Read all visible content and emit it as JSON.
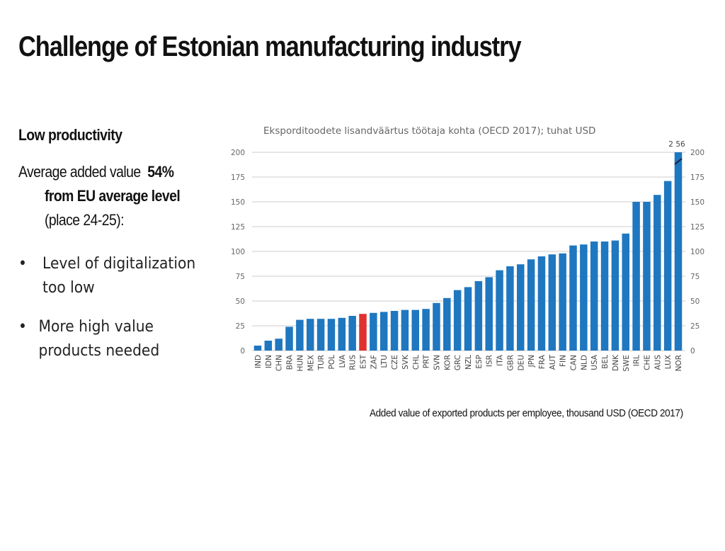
{
  "slide": {
    "title": "Challenge of Estonian manufacturing industry",
    "subheading": "Low productivity",
    "avg_prefix": "Average added value",
    "avg_percent": "54%",
    "avg_line2": "from EU average level",
    "avg_line3": "(place 24-25):",
    "bullet_symbol": "•",
    "bullets": [
      "Level of digitalization too low",
      "More high value products needed"
    ],
    "caption": "Added value of exported products per employee, thousand USD (OECD 2017)"
  },
  "colors": {
    "bar": "#1f77c0",
    "highlight": "#e03030",
    "grid": "#d8d8d8",
    "axis_text": "#666666"
  },
  "chart_data": {
    "type": "bar",
    "title": "Eksporditoodete lisandväärtus töötaja kohta (OECD 2017); tuhat USD",
    "xlabel": "",
    "ylabel": "",
    "ylim": [
      0,
      200
    ],
    "yticks": [
      0,
      25,
      50,
      75,
      100,
      125,
      150,
      175,
      200
    ],
    "categories": [
      "IND",
      "IDN",
      "CHN",
      "BRA",
      "HUN",
      "MEX",
      "TUR",
      "POL",
      "LVA",
      "RUS",
      "EST",
      "ZAF",
      "LTU",
      "CZE",
      "SVK",
      "CHL",
      "PRT",
      "SVN",
      "KOR",
      "GRC",
      "NZL",
      "ESP",
      "ISR",
      "ITA",
      "GBR",
      "DEU",
      "JPN",
      "FRA",
      "AUT",
      "FIN",
      "CAN",
      "NLD",
      "USA",
      "BEL",
      "DNK",
      "SWE",
      "IRL",
      "CHE",
      "AUS",
      "LUX",
      "NOR"
    ],
    "values": [
      5,
      10,
      12,
      24,
      31,
      32,
      32,
      32,
      33,
      35,
      37,
      38,
      39,
      40,
      41,
      41,
      42,
      48,
      53,
      61,
      64,
      70,
      74,
      81,
      85,
      87,
      92,
      95,
      97,
      98,
      106,
      107,
      110,
      110,
      111,
      118,
      150,
      150,
      157,
      171,
      200
    ],
    "highlight": "EST",
    "annotations": [
      {
        "category": "NOR",
        "label": "2 56",
        "note": "bar truncated at axis maximum"
      }
    ],
    "grid": true,
    "right_axis": true
  }
}
